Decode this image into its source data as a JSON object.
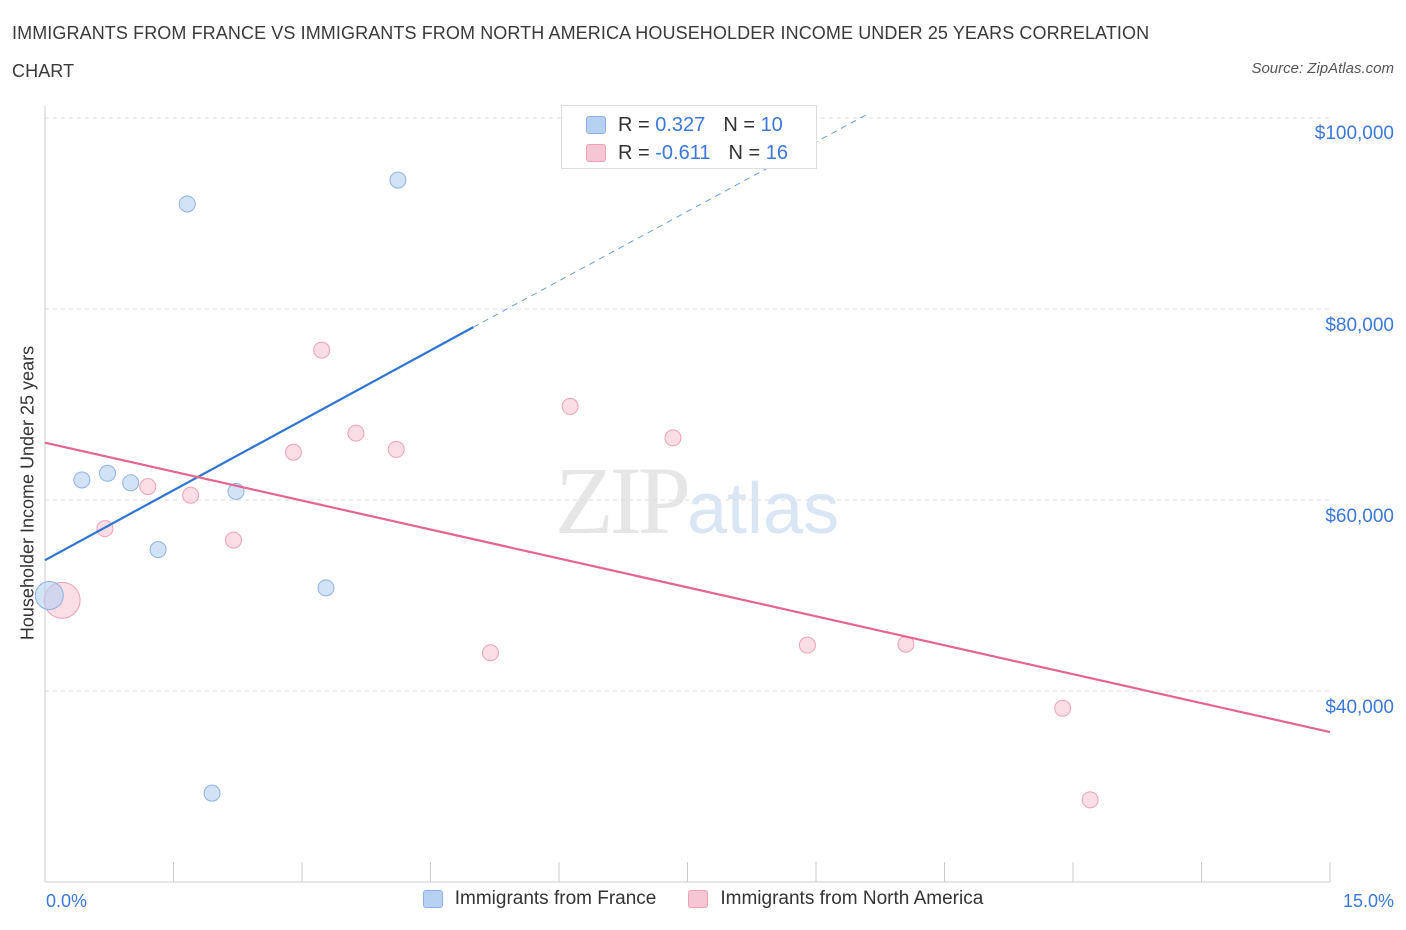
{
  "header": {
    "title": "IMMIGRANTS FROM FRANCE VS IMMIGRANTS FROM NORTH AMERICA HOUSEHOLDER INCOME UNDER 25 YEARS CORRELATION CHART",
    "source": "Source: ZipAtlas.com"
  },
  "watermark": {
    "zip": "ZIP",
    "atlas": "atlas"
  },
  "legend_top": {
    "france": {
      "r_label": "R =",
      "r_value": "0.327",
      "n_label": "N =",
      "n_value": "10"
    },
    "north_america": {
      "r_label": "R =",
      "r_value": "-0.611",
      "n_label": "N =",
      "n_value": "16"
    }
  },
  "colors": {
    "france_fill": "#b6d0f2",
    "france_stroke": "#8fb2e3",
    "france_line": "#2f74d0",
    "na_fill": "#f7c6d4",
    "na_stroke": "#eda2b8",
    "na_line": "#e4668e",
    "grid": "#dddddd",
    "axis_text": "#3c78d8"
  },
  "chart_data": {
    "type": "scatter",
    "title": "IMMIGRANTS FROM FRANCE VS IMMIGRANTS FROM NORTH AMERICA HOUSEHOLDER INCOME UNDER 25 YEARS CORRELATION CHART",
    "xlabel": "",
    "ylabel": "Householder Income Under 25 years",
    "xlim": [
      0,
      15
    ],
    "ylim": [
      20000,
      100000
    ],
    "x_tick_labels": [
      "0.0%",
      "15.0%"
    ],
    "y_ticks": [
      40000,
      60000,
      80000,
      100000
    ],
    "y_tick_labels": [
      "$40,000",
      "$60,000",
      "$80,000",
      "$100,000"
    ],
    "grid": true,
    "legend_placement": "bottom",
    "series": [
      {
        "name": "Immigrants from France",
        "r": 0.327,
        "n": 10,
        "points": [
          {
            "x": 0.05,
            "y": 50000,
            "big": true
          },
          {
            "x": 0.43,
            "y": 62100
          },
          {
            "x": 0.73,
            "y": 62800
          },
          {
            "x": 1.0,
            "y": 61800
          },
          {
            "x": 1.32,
            "y": 54800
          },
          {
            "x": 1.66,
            "y": 91000
          },
          {
            "x": 1.95,
            "y": 29300
          },
          {
            "x": 2.23,
            "y": 60900
          },
          {
            "x": 3.28,
            "y": 50800
          },
          {
            "x": 4.12,
            "y": 93500
          }
        ],
        "trend": {
          "x0": 0.0,
          "y0": 53700,
          "x1": 5.0,
          "y1": 78100,
          "x_dash_end": 9.6,
          "y_dash_end": 100400
        }
      },
      {
        "name": "Immigrants from North America",
        "r": -0.611,
        "n": 16,
        "points": [
          {
            "x": 0.2,
            "y": 49500,
            "big": true
          },
          {
            "x": 0.7,
            "y": 57000
          },
          {
            "x": 1.2,
            "y": 61400
          },
          {
            "x": 1.7,
            "y": 60500
          },
          {
            "x": 2.2,
            "y": 55800
          },
          {
            "x": 2.9,
            "y": 65000
          },
          {
            "x": 3.23,
            "y": 75700
          },
          {
            "x": 3.63,
            "y": 67000
          },
          {
            "x": 4.1,
            "y": 65300
          },
          {
            "x": 5.2,
            "y": 44000
          },
          {
            "x": 6.13,
            "y": 69800
          },
          {
            "x": 7.33,
            "y": 66500
          },
          {
            "x": 8.9,
            "y": 44800
          },
          {
            "x": 10.05,
            "y": 44900
          },
          {
            "x": 11.88,
            "y": 38200
          },
          {
            "x": 12.2,
            "y": 28600
          }
        ],
        "trend": {
          "x0": 0.0,
          "y0": 66000,
          "x1": 15.0,
          "y1": 35700
        }
      }
    ]
  },
  "legend_bottom": {
    "france_label": "Immigrants from France",
    "na_label": "Immigrants from North America"
  }
}
